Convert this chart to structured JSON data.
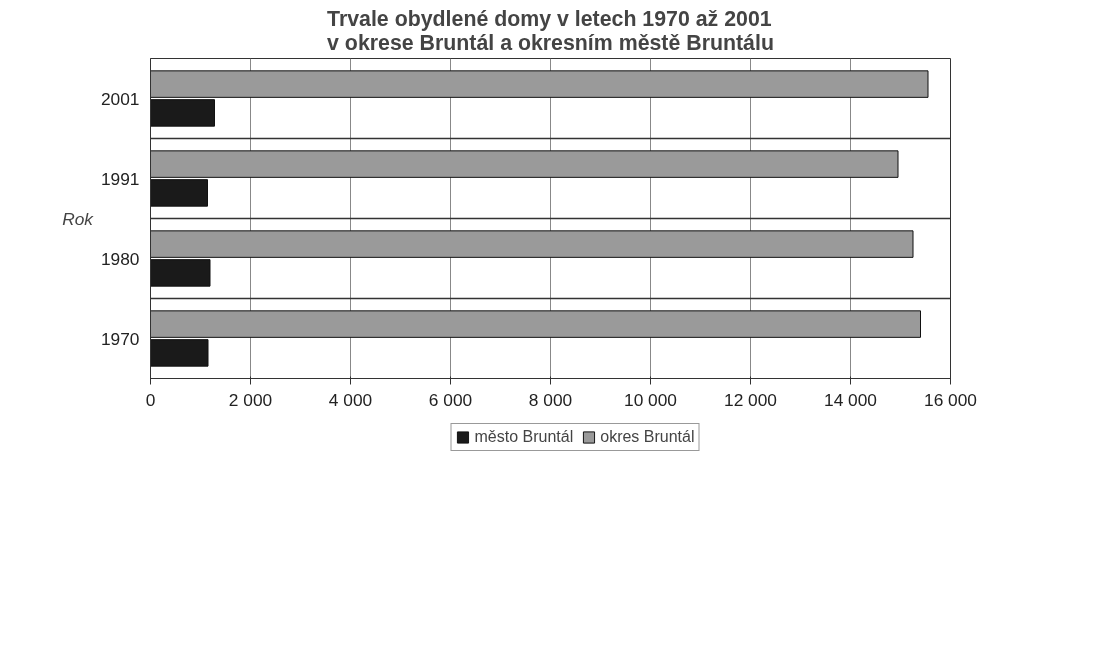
{
  "chart_data": {
    "type": "bar",
    "orientation": "horizontal",
    "title": "Trvale obydlené domy v letech 1970 až 2001\nv okrese Bruntál a okresním městě Bruntálu",
    "ylabel": "Rok",
    "categories": [
      "2001",
      "1991",
      "1980",
      "1970"
    ],
    "series": [
      {
        "name": "okres Bruntál",
        "color": "#9a9a9a",
        "values": [
          15550,
          14950,
          15250,
          15400
        ]
      },
      {
        "name": "město Bruntál",
        "color": "#1a1a1a",
        "values": [
          1280,
          1140,
          1190,
          1150
        ]
      }
    ],
    "xlim": [
      0,
      16000
    ],
    "xticks": [
      0,
      {
        "value": 2000,
        "label": "2 000"
      },
      {
        "value": 4000,
        "label": "4 000"
      },
      {
        "value": 6000,
        "label": "6 000"
      },
      {
        "value": 8000,
        "label": "8 000"
      },
      {
        "value": 10000,
        "label": "10 000"
      },
      {
        "value": 12000,
        "label": "12 000"
      },
      {
        "value": 14000,
        "label": "14 000"
      },
      {
        "value": 16000,
        "label": "16 000"
      }
    ],
    "grid": true,
    "legend": "bottom"
  }
}
